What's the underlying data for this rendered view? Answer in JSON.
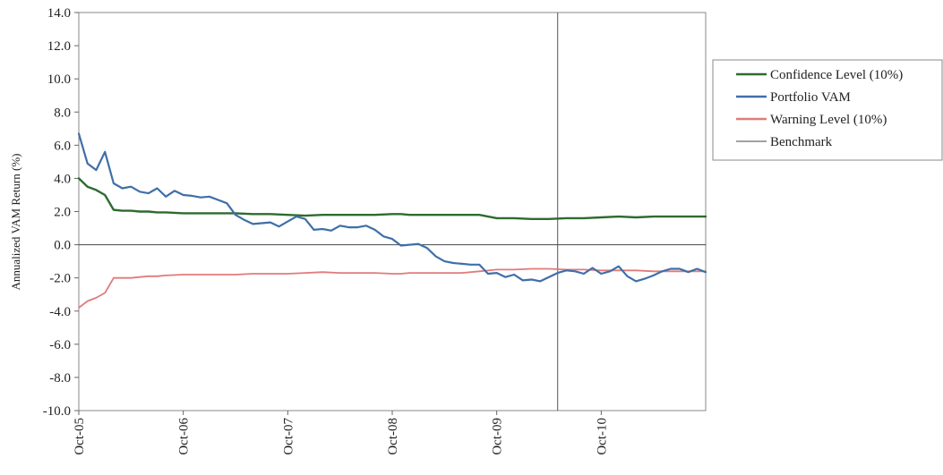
{
  "chart_data": {
    "type": "line",
    "ylabel": "Annualized VAM Return (%)",
    "ylim": [
      -10,
      14
    ],
    "y_ticks": [
      "14.0",
      "12.0",
      "10.0",
      "8.0",
      "6.0",
      "4.0",
      "2.0",
      "0.0",
      "-2.0",
      "-4.0",
      "-6.0",
      "-8.0",
      "-10.0"
    ],
    "x_tick_labels": [
      "Oct-05",
      "Oct-06",
      "Oct-07",
      "Oct-08",
      "Oct-09",
      "Oct-10"
    ],
    "x_tick_months": [
      0,
      12,
      24,
      36,
      48,
      60
    ],
    "x_range_months": [
      0,
      72
    ],
    "grid": false,
    "legend_position": "right",
    "vertical_marker_month": 55,
    "series": [
      {
        "name": "Confidence Level (10%)",
        "color": "#2e6b30",
        "x": [
          0,
          1,
          2,
          3,
          4,
          5,
          6,
          7,
          8,
          9,
          10,
          12,
          14,
          16,
          18,
          20,
          22,
          24,
          26,
          28,
          30,
          32,
          34,
          36,
          37,
          38,
          40,
          42,
          44,
          46,
          48,
          50,
          52,
          54,
          56,
          58,
          60,
          62,
          64,
          66,
          68,
          70,
          72
        ],
        "y": [
          4.0,
          3.5,
          3.3,
          3.0,
          2.1,
          2.05,
          2.05,
          2.0,
          2.0,
          1.95,
          1.95,
          1.9,
          1.9,
          1.9,
          1.9,
          1.85,
          1.85,
          1.8,
          1.75,
          1.8,
          1.8,
          1.8,
          1.8,
          1.85,
          1.85,
          1.8,
          1.8,
          1.8,
          1.8,
          1.8,
          1.6,
          1.6,
          1.55,
          1.55,
          1.6,
          1.6,
          1.65,
          1.7,
          1.65,
          1.7,
          1.7,
          1.7,
          1.7
        ]
      },
      {
        "name": "Portfolio VAM",
        "color": "#3f6fa8",
        "x": [
          0,
          1,
          2,
          3,
          4,
          5,
          6,
          7,
          8,
          9,
          10,
          11,
          12,
          13,
          14,
          15,
          16,
          17,
          18,
          19,
          20,
          21,
          22,
          23,
          24,
          25,
          26,
          27,
          28,
          29,
          30,
          31,
          32,
          33,
          34,
          35,
          36,
          37,
          38,
          39,
          40,
          41,
          42,
          43,
          44,
          45,
          46,
          47,
          48,
          49,
          50,
          51,
          52,
          53,
          54,
          55,
          56,
          57,
          58,
          59,
          60,
          61,
          62,
          63,
          64,
          65,
          66,
          67,
          68,
          69,
          70,
          71,
          72
        ],
        "y": [
          6.7,
          4.9,
          4.5,
          5.6,
          3.7,
          3.4,
          3.5,
          3.2,
          3.1,
          3.4,
          2.9,
          3.25,
          3.0,
          2.95,
          2.85,
          2.9,
          2.7,
          2.5,
          1.8,
          1.5,
          1.25,
          1.3,
          1.35,
          1.1,
          1.4,
          1.7,
          1.55,
          0.9,
          0.95,
          0.85,
          1.15,
          1.05,
          1.05,
          1.15,
          0.9,
          0.5,
          0.35,
          -0.05,
          0.0,
          0.05,
          -0.2,
          -0.7,
          -1.0,
          -1.1,
          -1.15,
          -1.2,
          -1.2,
          -1.75,
          -1.7,
          -1.95,
          -1.8,
          -2.15,
          -2.1,
          -2.2,
          -1.95,
          -1.7,
          -1.55,
          -1.6,
          -1.75,
          -1.4,
          -1.75,
          -1.6,
          -1.3,
          -1.9,
          -2.2,
          -2.05,
          -1.85,
          -1.6,
          -1.45,
          -1.45,
          -1.65,
          -1.45,
          -1.65
        ]
      },
      {
        "name": "Warning Level (10%)",
        "color": "#e07b7b",
        "x": [
          0,
          1,
          2,
          3,
          4,
          5,
          6,
          7,
          8,
          9,
          10,
          12,
          14,
          16,
          18,
          20,
          22,
          24,
          26,
          28,
          30,
          32,
          34,
          36,
          37,
          38,
          40,
          42,
          44,
          46,
          48,
          50,
          52,
          54,
          56,
          58,
          60,
          62,
          64,
          66,
          68,
          70,
          72
        ],
        "y": [
          -3.8,
          -3.4,
          -3.2,
          -2.9,
          -2.0,
          -2.0,
          -2.0,
          -1.95,
          -1.9,
          -1.9,
          -1.85,
          -1.8,
          -1.8,
          -1.8,
          -1.8,
          -1.75,
          -1.75,
          -1.75,
          -1.7,
          -1.65,
          -1.7,
          -1.7,
          -1.7,
          -1.75,
          -1.75,
          -1.7,
          -1.7,
          -1.7,
          -1.7,
          -1.6,
          -1.5,
          -1.5,
          -1.45,
          -1.45,
          -1.5,
          -1.5,
          -1.55,
          -1.55,
          -1.55,
          -1.6,
          -1.6,
          -1.6,
          -1.6
        ]
      },
      {
        "name": "Benchmark",
        "color": "#444444",
        "x": [
          0,
          72
        ],
        "y": [
          0,
          0
        ]
      }
    ]
  }
}
